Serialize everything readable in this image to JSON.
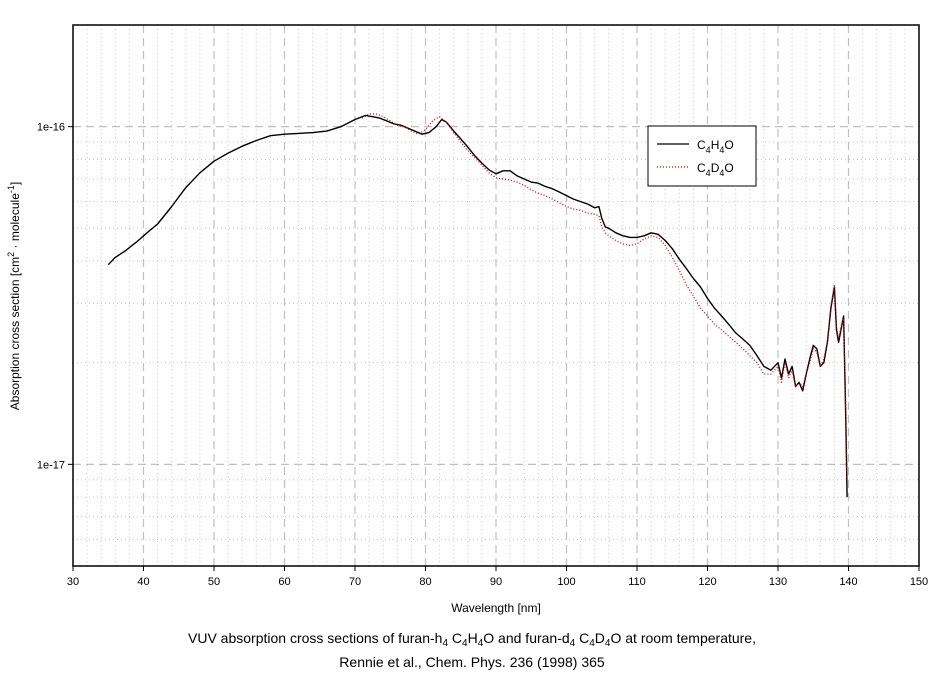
{
  "chart_data": {
    "type": "line",
    "title": "",
    "xlabel": "Wavelength [nm]",
    "ylabel": "Absorption cross section [cm2 · molecule-1]",
    "ylabel_parts": {
      "main": "Absorption cross section [cm",
      "sup1": "2",
      "mid": " · molecule",
      "sup2": "-1",
      "end": "]"
    },
    "xlim": [
      30,
      150
    ],
    "ylim": [
      5e-18,
      2e-16
    ],
    "yscale": "log",
    "grid": true,
    "legend_position": "top-right",
    "xticks": [
      30,
      40,
      50,
      60,
      70,
      80,
      90,
      100,
      110,
      120,
      130,
      140,
      150
    ],
    "xtick_labels": [
      "30",
      "40",
      "50",
      "60",
      "70",
      "80",
      "90",
      "100",
      "110",
      "120",
      "130",
      "140",
      "150"
    ],
    "yticks": [
      1e-16,
      1e-17
    ],
    "ytick_labels": [
      "1e-16",
      "1e-17"
    ],
    "series": [
      {
        "name": "C4H4O",
        "legend_parts": {
          "a": "C",
          "s1": "4",
          "b": "H",
          "s2": "4",
          "c": "O"
        },
        "color": "#000000",
        "style": "solid",
        "x": [
          35.0,
          36.0,
          37.5,
          39.0,
          40.5,
          42.0,
          44.0,
          46.0,
          48.0,
          50.0,
          52.0,
          54.0,
          56.0,
          58.0,
          60.0,
          62.0,
          64.0,
          66.0,
          68.0,
          70.0,
          71.5,
          72.5,
          73.5,
          74.5,
          75.5,
          76.5,
          77.5,
          78.5,
          79.5,
          80.5,
          81.5,
          82.3,
          83.0,
          84.0,
          85.0,
          86.0,
          87.0,
          88.0,
          89.0,
          90.0,
          91.0,
          92.0,
          93.0,
          94.0,
          95.0,
          96.0,
          97.0,
          98.0,
          99.0,
          100.0,
          101.0,
          102.0,
          103.0,
          104.0,
          104.6,
          105.0,
          105.5,
          106.0,
          107.0,
          108.0,
          109.0,
          110.0,
          111.0,
          112.0,
          113.0,
          114.0,
          115.0,
          116.0,
          117.0,
          118.0,
          119.0,
          120.0,
          121.0,
          122.0,
          123.0,
          124.0,
          125.0,
          126.0,
          127.0,
          128.0,
          129.0,
          130.0,
          130.5,
          131.0,
          131.5,
          132.0,
          132.5,
          133.0,
          133.5,
          134.0,
          134.5,
          135.0,
          135.5,
          136.0,
          136.5,
          137.0,
          137.5,
          138.0,
          138.3,
          138.6,
          139.0,
          139.3,
          139.6,
          139.8
        ],
        "y": [
          3.9e-17,
          4.1e-17,
          4.3e-17,
          4.55e-17,
          4.85e-17,
          5.15e-17,
          5.8e-17,
          6.6e-17,
          7.3e-17,
          7.9e-17,
          8.35e-17,
          8.75e-17,
          9.1e-17,
          9.4e-17,
          9.5e-17,
          9.55e-17,
          9.6e-17,
          9.7e-17,
          1e-16,
          1.05e-16,
          1.08e-16,
          1.07e-16,
          1.06e-16,
          1.04e-16,
          1.02e-16,
          1.01e-16,
          9.9e-17,
          9.7e-17,
          9.5e-17,
          9.6e-17,
          1e-16,
          1.05e-16,
          1.03e-16,
          9.7e-17,
          9.2e-17,
          8.7e-17,
          8.2e-17,
          7.8e-17,
          7.45e-17,
          7.25e-17,
          7.4e-17,
          7.4e-17,
          7.15e-17,
          7e-17,
          6.85e-17,
          6.8e-17,
          6.65e-17,
          6.55e-17,
          6.4e-17,
          6.25e-17,
          6.1e-17,
          6e-17,
          5.9e-17,
          5.75e-17,
          5.8e-17,
          5.35e-17,
          5.05e-17,
          5e-17,
          4.85e-17,
          4.75e-17,
          4.7e-17,
          4.7e-17,
          4.75e-17,
          4.85e-17,
          4.8e-17,
          4.6e-17,
          4.35e-17,
          4.05e-17,
          3.8e-17,
          3.55e-17,
          3.35e-17,
          3.1e-17,
          2.9e-17,
          2.75e-17,
          2.6e-17,
          2.45e-17,
          2.35e-17,
          2.25e-17,
          2.1e-17,
          1.95e-17,
          1.9e-17,
          2e-17,
          1.8e-17,
          2.05e-17,
          1.85e-17,
          1.95e-17,
          1.7e-17,
          1.75e-17,
          1.65e-17,
          1.85e-17,
          2.05e-17,
          2.25e-17,
          2.2e-17,
          1.95e-17,
          2e-17,
          2.3e-17,
          2.9e-17,
          3.35e-17,
          2.5e-17,
          2.3e-17,
          2.55e-17,
          2.75e-17,
          1.4e-17,
          8e-18
        ]
      },
      {
        "name": "C4D4O",
        "legend_parts": {
          "a": "C",
          "s1": "4",
          "b": "D",
          "s2": "4",
          "c": "O"
        },
        "color": "#e00000",
        "style": "dotted",
        "x": [
          71.0,
          72.0,
          73.0,
          74.0,
          75.0,
          76.0,
          77.0,
          78.0,
          79.0,
          80.0,
          81.0,
          82.0,
          83.0,
          84.0,
          85.0,
          86.0,
          87.0,
          88.0,
          89.0,
          90.0,
          91.0,
          92.0,
          93.0,
          94.0,
          95.0,
          96.0,
          97.0,
          98.0,
          99.0,
          100.0,
          101.0,
          102.0,
          103.0,
          104.0,
          104.6,
          105.0,
          105.5,
          106.0,
          107.0,
          108.0,
          109.0,
          110.0,
          111.0,
          112.0,
          113.0,
          114.0,
          115.0,
          116.0,
          117.0,
          118.0,
          119.0,
          120.0,
          121.0,
          122.0,
          123.0,
          124.0,
          125.0,
          126.0,
          127.0,
          128.0,
          129.0,
          130.0,
          130.5,
          131.0,
          131.5,
          132.0,
          132.5,
          133.0,
          133.5,
          134.0,
          134.5,
          135.0,
          135.5,
          136.0,
          136.5,
          137.0,
          137.5,
          138.0,
          138.3,
          138.6,
          139.0,
          139.3,
          139.6,
          139.8
        ],
        "y": [
          1.06e-16,
          1.09e-16,
          1.09e-16,
          1.07e-16,
          1.04e-16,
          1.01e-16,
          1e-16,
          9.7e-17,
          9.5e-17,
          9.8e-17,
          1.04e-16,
          1.07e-16,
          1.03e-16,
          9.6e-17,
          9e-17,
          8.5e-17,
          8.1e-17,
          7.7e-17,
          7.3e-17,
          7.05e-17,
          7e-17,
          6.95e-17,
          6.85e-17,
          6.7e-17,
          6.5e-17,
          6.35e-17,
          6.25e-17,
          6.1e-17,
          5.95e-17,
          5.8e-17,
          5.7e-17,
          5.65e-17,
          5.55e-17,
          5.5e-17,
          5.45e-17,
          5.05e-17,
          4.85e-17,
          4.75e-17,
          4.6e-17,
          4.5e-17,
          4.45e-17,
          4.5e-17,
          4.65e-17,
          4.75e-17,
          4.7e-17,
          4.45e-17,
          4.1e-17,
          3.75e-17,
          3.4e-17,
          3.15e-17,
          2.9e-17,
          2.75e-17,
          2.6e-17,
          2.5e-17,
          2.4e-17,
          2.3e-17,
          2.2e-17,
          2.1e-17,
          2e-17,
          1.85e-17,
          1.85e-17,
          1.95e-17,
          1.75e-17,
          2e-17,
          1.8e-17,
          1.9e-17,
          1.7e-17,
          1.75e-17,
          1.7e-17,
          1.85e-17,
          2e-17,
          2.2e-17,
          2.15e-17,
          1.95e-17,
          2.05e-17,
          2.3e-17,
          2.95e-17,
          3.4e-17,
          2.55e-17,
          2.35e-17,
          2.6e-17,
          2.7e-17,
          1.5e-17,
          9e-18
        ]
      }
    ]
  },
  "caption": {
    "line1_parts": [
      "VUV absorption cross sections of furan-h",
      "4",
      " C",
      "4",
      "H",
      "4",
      "O and furan-d",
      "4",
      " C",
      "4",
      "D",
      "4",
      "O at room temperature,"
    ],
    "line2": "Rennie et al., Chem. Phys. 236 (1998) 365"
  }
}
